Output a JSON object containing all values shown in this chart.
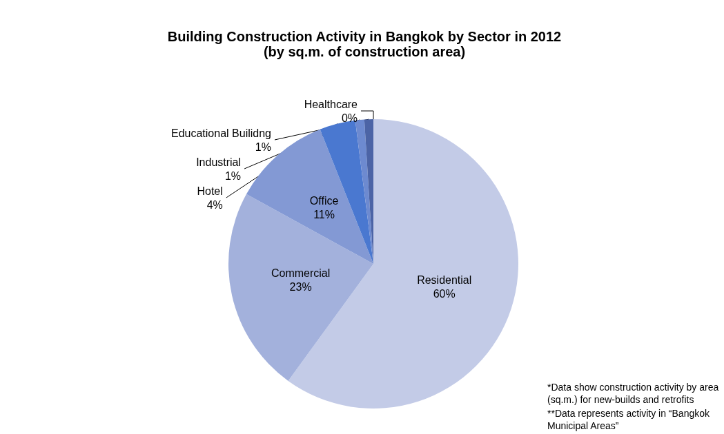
{
  "chart_data": {
    "type": "pie",
    "title": "Building Construction Activity in Bangkok by Sector in 2012",
    "subtitle": "(by sq.m. of construction area)",
    "categories": [
      "Residential",
      "Commercial",
      "Office",
      "Hotel",
      "Industrial",
      "Educational Builidng",
      "Healthcare"
    ],
    "values": [
      60,
      23,
      11,
      4,
      1,
      1,
      0
    ],
    "value_labels": [
      "60%",
      "23%",
      "11%",
      "4%",
      "1%",
      "1%",
      "0%"
    ],
    "colors": [
      "#c3cbe7",
      "#a3b1dc",
      "#8399d4",
      "#4a78d0",
      "#6d8ad0",
      "#4c64a6",
      "#3b5391"
    ],
    "annotations": [
      "*Data show construction activity by area (sq.m.) for new-builds and retrofits",
      "**Data represents activity in “Bangkok Municipal Areas”"
    ],
    "legend": false
  }
}
